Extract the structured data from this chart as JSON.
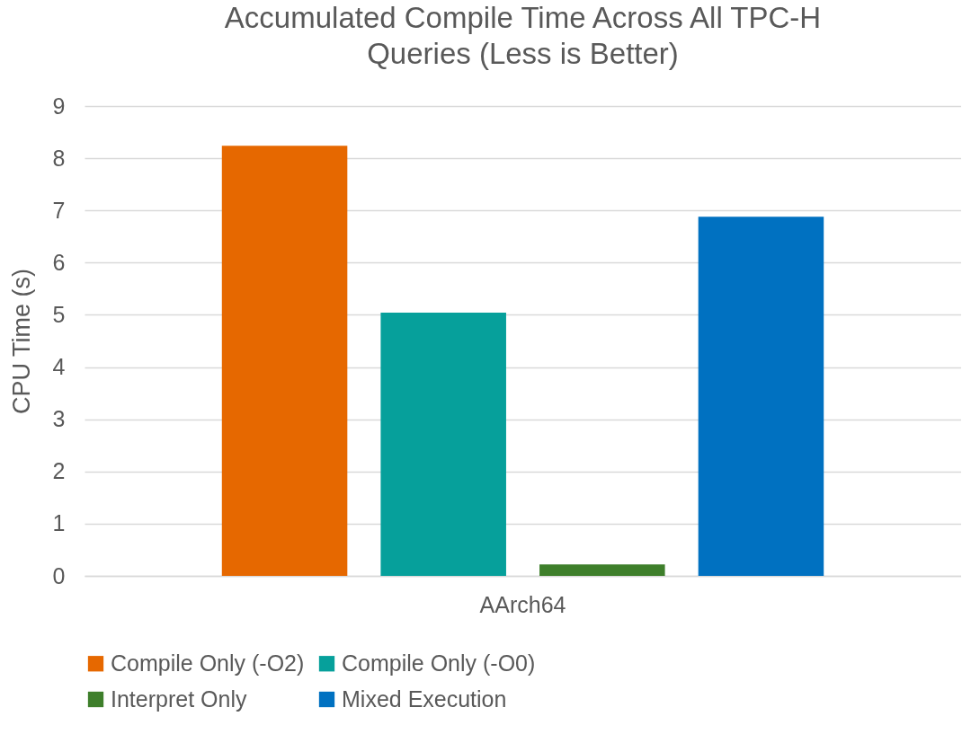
{
  "chart_data": {
    "type": "bar",
    "title": [
      "Accumulated Compile Time Across All TPC-H",
      "Queries (Less is Better)"
    ],
    "ylabel": "CPU Time (s)",
    "categories": [
      "AArch64"
    ],
    "series": [
      {
        "name": "Compile Only (-O2)",
        "color": "#e66800",
        "values": [
          8.24
        ]
      },
      {
        "name": "Compile Only (-O0)",
        "color": "#06a09b",
        "values": [
          5.04
        ]
      },
      {
        "name": "Interpret Only",
        "color": "#3e7f2b",
        "values": [
          0.22
        ]
      },
      {
        "name": "Mixed Execution",
        "color": "#0071c1",
        "values": [
          6.88
        ]
      }
    ],
    "ylim": [
      0,
      9
    ],
    "yticks": [
      0,
      1,
      2,
      3,
      4,
      5,
      6,
      7,
      8,
      9
    ],
    "grid": "y",
    "legend": "bottom"
  }
}
